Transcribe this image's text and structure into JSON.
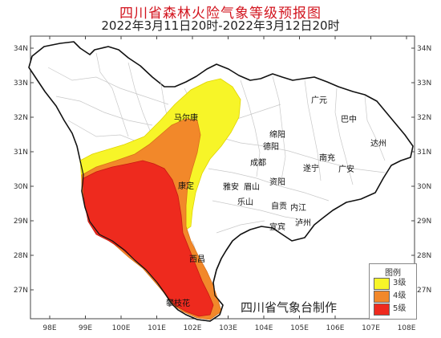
{
  "title": "四川省森林火险气象等级预报图",
  "subtitle": "2022年3月11日20时-2022年3月12日20时",
  "credit": "四川省气象台制作",
  "legend": {
    "title": "图例",
    "items": [
      {
        "label": "3级",
        "color": "#f7f528"
      },
      {
        "label": "4级",
        "color": "#f2882a"
      },
      {
        "label": "5级",
        "color": "#ee2a1e"
      }
    ]
  },
  "axes": {
    "lon_labels": [
      "98E",
      "99E",
      "100E",
      "101E",
      "102E",
      "103E",
      "104E",
      "105E",
      "106E",
      "107E",
      "108E"
    ],
    "lat_labels": [
      "34N",
      "33N",
      "32N",
      "31N",
      "30N",
      "29N",
      "28N",
      "27N"
    ]
  },
  "cities": [
    "马尔康",
    "广元",
    "巴中",
    "绵阳",
    "达州",
    "德阳",
    "南充",
    "成都",
    "遂宁",
    "广安",
    "康定",
    "雅安",
    "眉山",
    "资阳",
    "乐山",
    "自贡",
    "内江",
    "宜宾",
    "泸州",
    "西昌",
    "攀枝花"
  ]
}
